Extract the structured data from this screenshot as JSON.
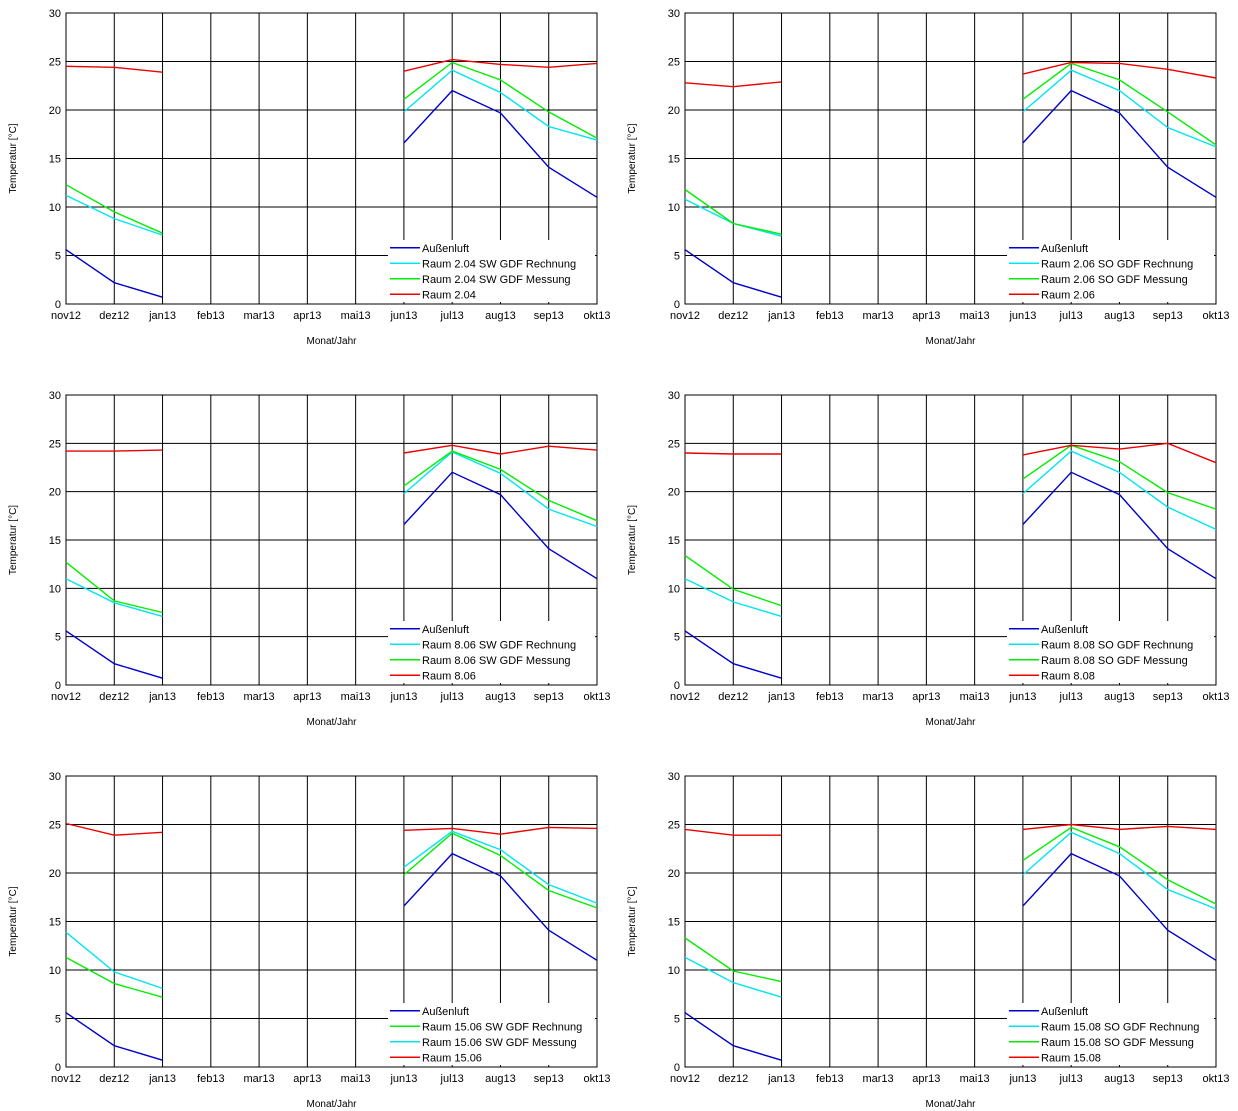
{
  "chart_data": [
    {
      "type": "line",
      "xlabel": "Monat/Jahr",
      "ylabel": "Temperatur [°C]",
      "ylim": [
        0,
        30
      ],
      "yticks": [
        0,
        5,
        10,
        15,
        20,
        25,
        30
      ],
      "grid": true,
      "legend": "bottom-right",
      "categories": [
        "nov12",
        "dez12",
        "jan13",
        "feb13",
        "mar13",
        "apr13",
        "mai13",
        "jun13",
        "jul13",
        "aug13",
        "sep13",
        "okt13"
      ],
      "series": [
        {
          "name": "Außenluft",
          "color": "#0000cc",
          "values": [
            5.6,
            2.2,
            0.7,
            null,
            null,
            null,
            null,
            16.6,
            22.0,
            19.7,
            14.1,
            11.0
          ]
        },
        {
          "name": "Raum 2.04 SW GDF Rechnung",
          "color": "#00e5ee",
          "values": [
            11.2,
            8.8,
            7.1,
            null,
            null,
            null,
            null,
            19.8,
            24.1,
            21.8,
            18.3,
            16.9
          ]
        },
        {
          "name": "Raum 2.04 SW GDF Messung",
          "color": "#00ee00",
          "values": [
            12.3,
            9.5,
            7.3,
            null,
            null,
            null,
            null,
            21.1,
            24.9,
            23.1,
            19.8,
            17.1
          ]
        },
        {
          "name": "Raum 2.04",
          "color": "#ee0000",
          "values": [
            24.5,
            24.4,
            23.9,
            null,
            null,
            null,
            null,
            24.0,
            25.2,
            24.7,
            24.4,
            24.8
          ]
        }
      ]
    },
    {
      "type": "line",
      "xlabel": "Monat/Jahr",
      "ylabel": "Temperatur [°C]",
      "ylim": [
        0,
        30
      ],
      "yticks": [
        0,
        5,
        10,
        15,
        20,
        25,
        30
      ],
      "grid": true,
      "legend": "bottom-right",
      "categories": [
        "nov12",
        "dez12",
        "jan13",
        "feb13",
        "mar13",
        "apr13",
        "mai13",
        "jun13",
        "jul13",
        "aug13",
        "sep13",
        "okt13"
      ],
      "series": [
        {
          "name": "Außenluft",
          "color": "#0000cc",
          "values": [
            5.6,
            2.2,
            0.7,
            null,
            null,
            null,
            null,
            16.6,
            22.0,
            19.7,
            14.1,
            11.0
          ]
        },
        {
          "name": "Raum 2.06 SO GDF Rechnung",
          "color": "#00e5ee",
          "values": [
            10.8,
            8.3,
            7.0,
            null,
            null,
            null,
            null,
            19.8,
            24.1,
            22.0,
            18.2,
            16.2
          ]
        },
        {
          "name": "Raum 2.06 SO GDF Messung",
          "color": "#00ee00",
          "values": [
            11.8,
            8.3,
            7.2,
            null,
            null,
            null,
            null,
            21.1,
            24.8,
            23.1,
            19.8,
            16.4
          ]
        },
        {
          "name": "Raum 2.06",
          "color": "#ee0000",
          "values": [
            22.8,
            22.4,
            22.9,
            null,
            null,
            null,
            null,
            23.7,
            24.9,
            24.8,
            24.2,
            23.3
          ]
        }
      ]
    },
    {
      "type": "line",
      "xlabel": "Monat/Jahr",
      "ylabel": "Temperatur [°C]",
      "ylim": [
        0,
        30
      ],
      "yticks": [
        0,
        5,
        10,
        15,
        20,
        25,
        30
      ],
      "grid": true,
      "legend": "bottom-right",
      "categories": [
        "nov12",
        "dez12",
        "jan13",
        "feb13",
        "mar13",
        "apr13",
        "mai13",
        "jun13",
        "jul13",
        "aug13",
        "sep13",
        "okt13"
      ],
      "series": [
        {
          "name": "Außenluft",
          "color": "#0000cc",
          "values": [
            5.6,
            2.2,
            0.7,
            null,
            null,
            null,
            null,
            16.6,
            22.0,
            19.7,
            14.1,
            11.0
          ]
        },
        {
          "name": "Raum 8.06 SW GDF Rechnung",
          "color": "#00e5ee",
          "values": [
            11.0,
            8.5,
            7.1,
            null,
            null,
            null,
            null,
            19.8,
            24.1,
            21.9,
            18.2,
            16.4
          ]
        },
        {
          "name": "Raum 8.06 SW GDF Messung",
          "color": "#00ee00",
          "values": [
            12.7,
            8.7,
            7.5,
            null,
            null,
            null,
            null,
            20.6,
            24.2,
            22.3,
            19.1,
            17.0
          ]
        },
        {
          "name": "Raum 8.06",
          "color": "#ee0000",
          "values": [
            24.2,
            24.2,
            24.3,
            null,
            null,
            null,
            null,
            24.0,
            24.8,
            23.9,
            24.7,
            24.3
          ]
        }
      ]
    },
    {
      "type": "line",
      "xlabel": "Monat/Jahr",
      "ylabel": "Temperatur [°C]",
      "ylim": [
        0,
        30
      ],
      "yticks": [
        0,
        5,
        10,
        15,
        20,
        25,
        30
      ],
      "grid": true,
      "legend": "bottom-right",
      "categories": [
        "nov12",
        "dez12",
        "jan13",
        "feb13",
        "mar13",
        "apr13",
        "mai13",
        "jun13",
        "jul13",
        "aug13",
        "sep13",
        "okt13"
      ],
      "series": [
        {
          "name": "Außenluft",
          "color": "#0000cc",
          "values": [
            5.6,
            2.2,
            0.7,
            null,
            null,
            null,
            null,
            16.6,
            22.0,
            19.7,
            14.1,
            11.0
          ]
        },
        {
          "name": "Raum 8.08 SO GDF Rechnung",
          "color": "#00e5ee",
          "values": [
            11.0,
            8.6,
            7.1,
            null,
            null,
            null,
            null,
            19.8,
            24.2,
            22.0,
            18.4,
            16.1
          ]
        },
        {
          "name": "Raum 8.08 SO GDF Messung",
          "color": "#00ee00",
          "values": [
            13.4,
            9.9,
            8.2,
            null,
            null,
            null,
            null,
            21.3,
            24.8,
            23.1,
            19.9,
            18.2
          ]
        },
        {
          "name": "Raum 8.08",
          "color": "#ee0000",
          "values": [
            24.0,
            23.9,
            23.9,
            null,
            null,
            null,
            null,
            23.8,
            24.8,
            24.4,
            25.0,
            23.0
          ]
        }
      ]
    },
    {
      "type": "line",
      "xlabel": "Monat/Jahr",
      "ylabel": "Temperatur [°C]",
      "ylim": [
        0,
        30
      ],
      "yticks": [
        0,
        5,
        10,
        15,
        20,
        25,
        30
      ],
      "grid": true,
      "legend": "bottom-right",
      "categories": [
        "nov12",
        "dez12",
        "jan13",
        "feb13",
        "mar13",
        "apr13",
        "mai13",
        "jun13",
        "jul13",
        "aug13",
        "sep13",
        "okt13"
      ],
      "series": [
        {
          "name": "Außenluft",
          "color": "#0000cc",
          "values": [
            5.6,
            2.2,
            0.7,
            null,
            null,
            null,
            null,
            16.6,
            22.0,
            19.7,
            14.1,
            11.0
          ]
        },
        {
          "name": "Raum 15.06 SW GDF Rechnung",
          "color": "#00ee00",
          "values": [
            11.3,
            8.6,
            7.2,
            null,
            null,
            null,
            null,
            19.8,
            24.1,
            21.8,
            18.2,
            16.4
          ]
        },
        {
          "name": "Raum 15.06 SW GDF Messung",
          "color": "#00e5ee",
          "values": [
            13.9,
            9.8,
            8.1,
            null,
            null,
            null,
            null,
            20.6,
            24.3,
            22.4,
            18.8,
            16.9
          ]
        },
        {
          "name": "Raum 15.06",
          "color": "#ee0000",
          "values": [
            25.1,
            23.9,
            24.2,
            null,
            null,
            null,
            null,
            24.4,
            24.6,
            24.0,
            24.7,
            24.6
          ]
        }
      ]
    },
    {
      "type": "line",
      "xlabel": "Monat/Jahr",
      "ylabel": "Temperatur [°C]",
      "ylim": [
        0,
        30
      ],
      "yticks": [
        0,
        5,
        10,
        15,
        20,
        25,
        30
      ],
      "grid": true,
      "legend": "bottom-right",
      "categories": [
        "nov12",
        "dez12",
        "jan13",
        "feb13",
        "mar13",
        "apr13",
        "mai13",
        "jun13",
        "jul13",
        "aug13",
        "sep13",
        "okt13"
      ],
      "series": [
        {
          "name": "Außenluft",
          "color": "#0000cc",
          "values": [
            5.6,
            2.2,
            0.7,
            null,
            null,
            null,
            null,
            16.6,
            22.0,
            19.7,
            14.1,
            11.0
          ]
        },
        {
          "name": "Raum 15.08 SO GDF Rechnung",
          "color": "#00e5ee",
          "values": [
            11.3,
            8.7,
            7.2,
            null,
            null,
            null,
            null,
            19.8,
            24.2,
            22.0,
            18.3,
            16.3
          ]
        },
        {
          "name": "Raum 15.08 SO GDF Messung",
          "color": "#00ee00",
          "values": [
            13.3,
            9.9,
            8.8,
            null,
            null,
            null,
            null,
            21.3,
            24.7,
            22.7,
            19.3,
            16.8
          ]
        },
        {
          "name": "Raum 15.08",
          "color": "#ee0000",
          "values": [
            24.5,
            23.9,
            23.9,
            null,
            null,
            null,
            null,
            24.5,
            25.0,
            24.5,
            24.8,
            24.5
          ]
        }
      ]
    }
  ]
}
